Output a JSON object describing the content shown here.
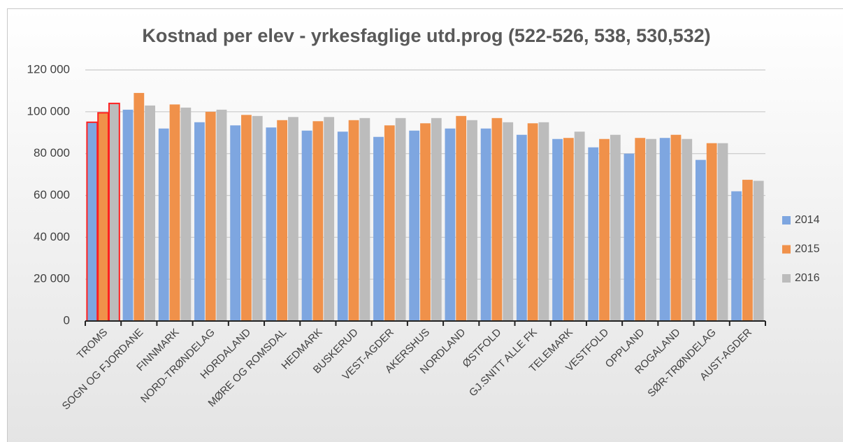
{
  "chart_data": {
    "type": "bar",
    "title": "Kostnad per elev - yrkesfaglige utd.prog (522-526, 538, 530,532)",
    "categories": [
      "TROMS",
      "SOGN OG FJORDANE",
      "FINNMARK",
      "NORD-TRØNDELAG",
      "HORDALAND",
      "MØRE OG ROMSDAL",
      "HEDMARK",
      "BUSKERUD",
      "VEST-AGDER",
      "AKERSHUS",
      "NORDLAND",
      "ØSTFOLD",
      "GJ.SNITT ALLE FK",
      "TELEMARK",
      "VESTFOLD",
      "OPPLAND",
      "ROGALAND",
      "SØR-TRØNDELAG",
      "AUST-AGDER"
    ],
    "series": [
      {
        "name": "2014",
        "color": "#7ea6e0",
        "values": [
          95000,
          101000,
          92000,
          95000,
          93500,
          92500,
          91000,
          90500,
          88000,
          91000,
          92000,
          92000,
          89000,
          87000,
          83000,
          80000,
          87500,
          77000,
          62000
        ]
      },
      {
        "name": "2015",
        "color": "#f0914a",
        "values": [
          99500,
          109000,
          103500,
          100000,
          98500,
          96000,
          95500,
          96000,
          93500,
          94500,
          98000,
          97000,
          94500,
          87500,
          87000,
          87500,
          89000,
          85000,
          67500
        ]
      },
      {
        "name": "2016",
        "color": "#bcbcbc",
        "values": [
          104000,
          103000,
          102000,
          101000,
          98000,
          97500,
          97500,
          97000,
          97000,
          97000,
          96000,
          95000,
          95000,
          90500,
          89000,
          87000,
          87000,
          85000,
          67000
        ]
      }
    ],
    "ylim": [
      0,
      120000
    ],
    "yticks": [
      0,
      {
        "value": 20000,
        "label": "20 000"
      },
      {
        "value": 40000,
        "label": "40 000"
      },
      {
        "value": 60000,
        "label": "60 000"
      },
      {
        "value": 80000,
        "label": "80 000"
      },
      {
        "value": 100000,
        "label": "100 000"
      },
      {
        "value": 120000,
        "label": "120 000"
      }
    ],
    "grid": true,
    "legend": "right",
    "highlight": {
      "category": 0,
      "color": "#ff2020"
    }
  }
}
